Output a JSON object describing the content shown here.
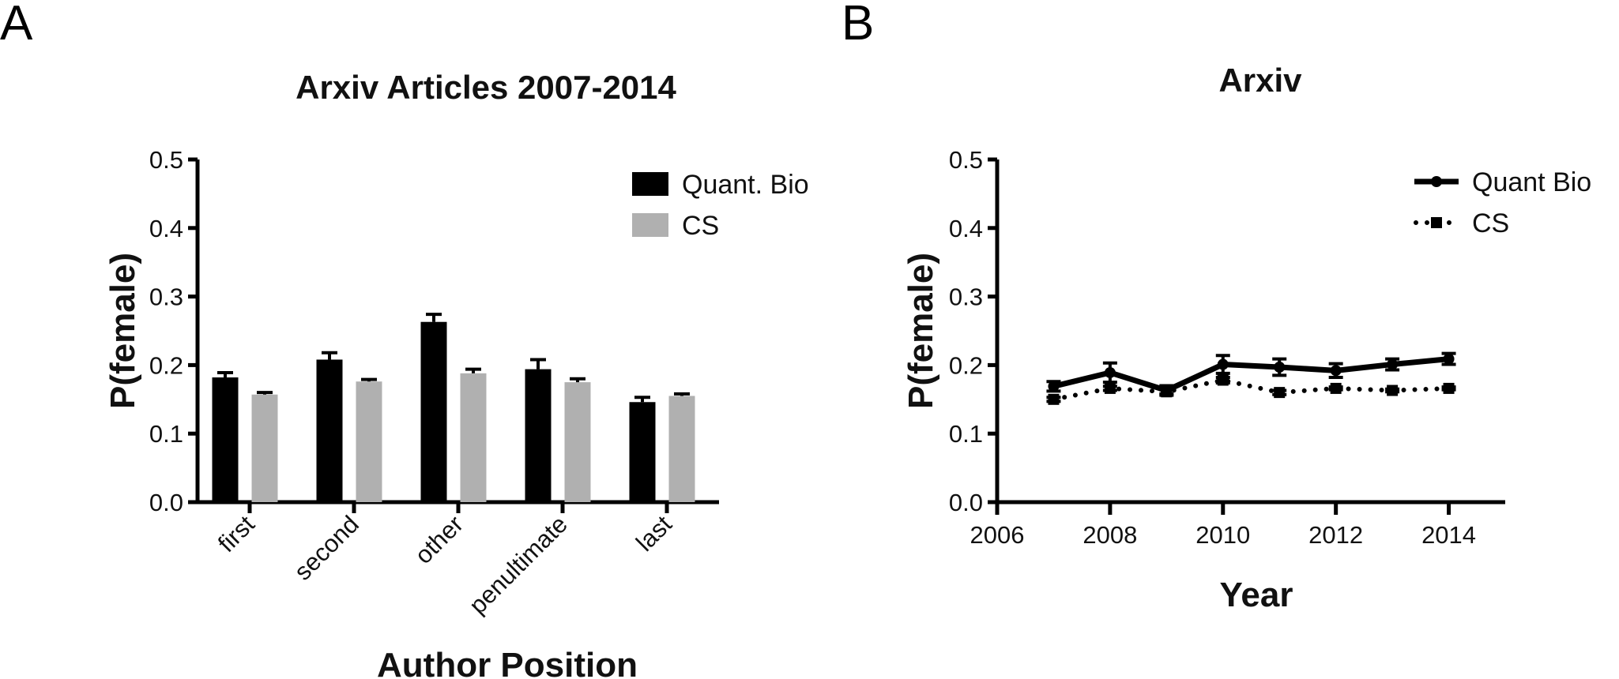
{
  "panels": {
    "a": "A",
    "b": "B"
  },
  "chart_data": [
    {
      "type": "bar",
      "title": "Arxiv Articles 2007-2014",
      "xlabel": "Author Position",
      "ylabel": "P(female)",
      "ylim": [
        0,
        0.5
      ],
      "yticks": [
        "0.0",
        "0.1",
        "0.2",
        "0.3",
        "0.4",
        "0.5"
      ],
      "categories": [
        "first",
        "second",
        "other",
        "penultimate",
        "last"
      ],
      "series": [
        {
          "name": "Quant. Bio",
          "color": "#000000",
          "values": [
            0.182,
            0.208,
            0.263,
            0.194,
            0.146
          ],
          "errors": [
            0.007,
            0.01,
            0.011,
            0.014,
            0.007
          ]
        },
        {
          "name": "CS",
          "color": "#b0b0b0",
          "values": [
            0.157,
            0.176,
            0.188,
            0.175,
            0.155
          ],
          "errors": [
            0.003,
            0.003,
            0.006,
            0.005,
            0.003
          ]
        }
      ],
      "legend_position": "top-right",
      "grid": false
    },
    {
      "type": "line",
      "title": "Arxiv",
      "xlabel": "Year",
      "ylabel": "P(female)",
      "xlim": [
        2006,
        2015
      ],
      "ylim": [
        0,
        0.5
      ],
      "xticks": [
        "2006",
        "2008",
        "2010",
        "2012",
        "2014"
      ],
      "yticks": [
        "0.0",
        "0.1",
        "0.2",
        "0.3",
        "0.4",
        "0.5"
      ],
      "x": [
        2007,
        2008,
        2009,
        2010,
        2011,
        2012,
        2013,
        2014
      ],
      "series": [
        {
          "name": "Quant Bio",
          "color": "#000000",
          "style": "solid",
          "marker": "circle",
          "values": [
            0.169,
            0.189,
            0.163,
            0.201,
            0.197,
            0.192,
            0.201,
            0.209
          ],
          "errors": [
            0.007,
            0.014,
            0.007,
            0.013,
            0.012,
            0.01,
            0.008,
            0.008
          ]
        },
        {
          "name": "CS",
          "color": "#000000",
          "style": "dotted",
          "marker": "square",
          "values": [
            0.15,
            0.166,
            0.161,
            0.178,
            0.16,
            0.166,
            0.163,
            0.166
          ],
          "errors": [
            0.003,
            0.003,
            0.003,
            0.004,
            0.003,
            0.002,
            0.002,
            0.002
          ]
        }
      ],
      "legend_position": "top-right",
      "grid": false
    }
  ]
}
